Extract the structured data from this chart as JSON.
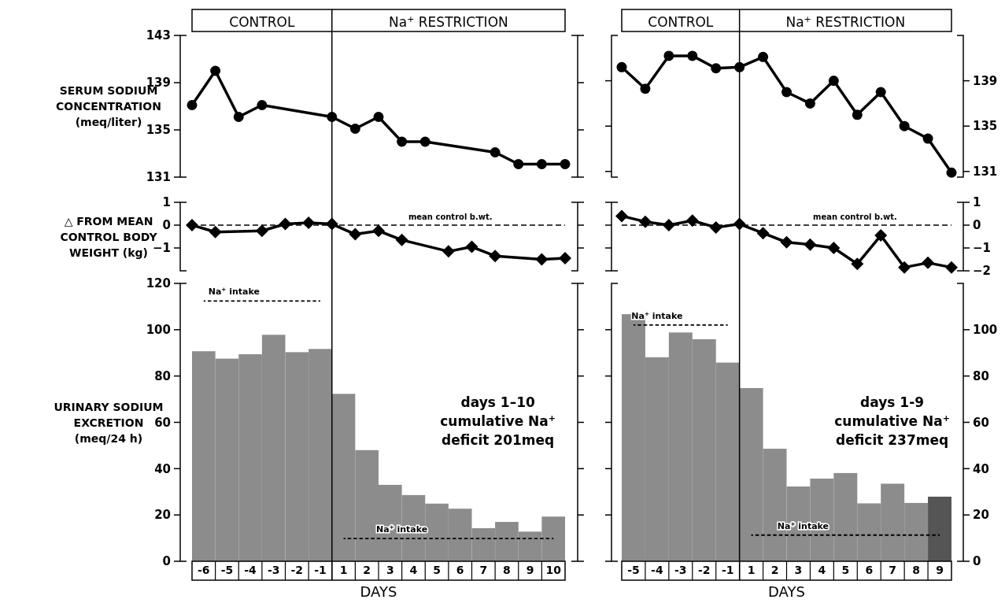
{
  "chart_data": [
    {
      "type": "line",
      "ylabel": "SERUM SODIUM CONCENTRATION (meq/liter)",
      "categories": [
        null,
        null,
        null,
        null,
        null,
        null,
        null,
        null,
        null,
        null,
        null,
        null,
        null,
        null,
        null,
        null,
        null
      ],
      "marker": "circle",
      "ylim": [
        131,
        143
      ],
      "yticks": [
        131,
        135,
        139,
        143
      ],
      "series": [
        {
          "color": "#000000",
          "values": [
            137.1,
            140,
            136.1,
            137.1,
            null,
            null,
            136.1,
            135.1,
            136.1,
            134,
            134,
            null,
            null,
            133.1,
            132.1,
            132.1,
            132.1
          ]
        }
      ],
      "annotations": [
        "CONTROL",
        "Na$^{+}$ RESTRICTION"
      ]
    },
    {
      "type": "line",
      "categories": [
        null,
        null,
        null,
        null,
        null,
        null,
        null,
        null,
        null,
        null,
        null,
        null,
        null,
        null,
        null
      ],
      "marker": "circle",
      "ylim": [
        130.5,
        143
      ],
      "yticks": [
        131,
        135,
        139
      ],
      "series": [
        {
          "color": "#000000",
          "values": [
            140.2,
            138.3,
            141.2,
            141.2,
            140.1,
            140.2,
            141.1,
            138,
            137,
            139,
            136,
            138,
            135,
            133.9,
            130.9
          ]
        }
      ],
      "annotations": [
        "CONTROL",
        "Na$^{+}$ RESTRICTION"
      ]
    },
    {
      "type": "line",
      "ylabel": "△ FROM MEAN CONTROL BODY WEIGHT (kg)",
      "categories": [
        null,
        null,
        null,
        null,
        null,
        null,
        null,
        null,
        null,
        null,
        null,
        null,
        null,
        null,
        null,
        null,
        null
      ],
      "marker": "diamond",
      "ylim": [
        -2,
        1
      ],
      "yticks": [
        1,
        0,
        -1
      ],
      "series": [
        {
          "color": "#000000",
          "values": [
            0,
            -0.3,
            null,
            -0.25,
            0.05,
            0.1,
            0.05,
            -0.4,
            -0.25,
            -0.65,
            null,
            -1.15,
            -0.95,
            -1.35,
            null,
            -1.5,
            -1.45
          ]
        }
      ],
      "ref_lines": [
        {
          "axis": "y",
          "value": 0,
          "label": "mean control b.wt.",
          "line_style": "dashed"
        }
      ]
    },
    {
      "type": "line",
      "categories": [
        null,
        null,
        null,
        null,
        null,
        null,
        null,
        null,
        null,
        null,
        null,
        null,
        null,
        null,
        null
      ],
      "marker": "diamond",
      "ylim": [
        -2,
        1
      ],
      "yticks": [
        1,
        0,
        -1,
        -2
      ],
      "series": [
        {
          "color": "#000000",
          "values": [
            0.4,
            0.15,
            0,
            0.2,
            -0.1,
            0.05,
            -0.35,
            -0.75,
            -0.85,
            -1,
            -1.7,
            -0.45,
            -1.85,
            -1.65,
            -1.85
          ]
        }
      ],
      "ref_lines": [
        {
          "axis": "y",
          "value": 0,
          "label": "mean control b.wt.",
          "line_style": "dashed"
        }
      ]
    },
    {
      "type": "bar",
      "ylabel": "URINARY SODIUM EXCRETION (meq/24 h)",
      "xlabel": "DAYS",
      "categories": [
        "-6",
        "-5",
        "-4",
        "-3",
        "-2",
        "-1",
        "1",
        "2",
        "3",
        "4",
        "5",
        "6",
        "7",
        "8",
        "9",
        "10"
      ],
      "ylim": [
        0,
        120
      ],
      "yticks": [
        0,
        20,
        40,
        60,
        80,
        100,
        120
      ],
      "series": [
        {
          "type": "bar",
          "colors": [
            "#8c8c8c",
            "#8c8c8c",
            "#8c8c8c",
            "#8c8c8c",
            "#8c8c8c",
            "#8c8c8c",
            "#8c8c8c",
            "#8c8c8c",
            "#8c8c8c",
            "#8c8c8c",
            "#8c8c8c",
            "#8c8c8c",
            "#8c8c8c",
            "#8c8c8c",
            "#8c8c8c",
            "#8c8c8c"
          ],
          "values": [
            90.7,
            87.5,
            89.4,
            97.8,
            90.3,
            91.7,
            72.3,
            48,
            33,
            28.6,
            24.9,
            22.7,
            14.3,
            17,
            12.8,
            19.3
          ]
        },
        {
          "type": "line",
          "name": "Na$^{+}$ intake",
          "color": "#000000",
          "line_style": "dashed",
          "values": [
            112.4,
            112.4,
            112.4,
            112.4,
            112.4,
            112.4,
            null,
            null,
            null,
            null,
            null,
            null,
            null,
            null,
            null,
            null
          ]
        },
        {
          "type": "line",
          "name": "Na$^{+}$ intake",
          "color": "#000000",
          "line_style": "dashed",
          "values": [
            null,
            null,
            null,
            null,
            null,
            null,
            9.8,
            9.8,
            9.8,
            9.8,
            9.8,
            9.8,
            9.8,
            9.8,
            9.8,
            9.8
          ]
        }
      ],
      "annotations": [
        "days 1–10",
        "cumulative Na$^{+}$",
        "deficit 201meq"
      ]
    },
    {
      "type": "bar",
      "xlabel": "DAYS",
      "categories": [
        "-5",
        "-4",
        "-3",
        "-2",
        "-1",
        "1",
        "2",
        "3",
        "4",
        "5",
        "6",
        "7",
        "8",
        "9"
      ],
      "ylim": [
        0,
        120
      ],
      "yticks": [
        0,
        20,
        40,
        60,
        80,
        100
      ],
      "series": [
        {
          "type": "bar",
          "colors": [
            "#8c8c8c",
            "#8c8c8c",
            "#8c8c8c",
            "#8c8c8c",
            "#8c8c8c",
            "#8c8c8c",
            "#8c8c8c",
            "#8c8c8c",
            "#8c8c8c",
            "#8c8c8c",
            "#8c8c8c",
            "#8c8c8c",
            "#8c8c8c",
            "#555555"
          ],
          "values": [
            106.7,
            88.1,
            98.8,
            95.9,
            85.8,
            74.8,
            48.6,
            32.3,
            35.7,
            38.1,
            25,
            33.5,
            25.2,
            27.9
          ]
        },
        {
          "type": "line",
          "name": "Na$^{+}$ intake",
          "color": "#000000",
          "line_style": "dashed",
          "values": [
            102,
            102,
            102,
            102,
            102,
            null,
            null,
            null,
            null,
            null,
            null,
            null,
            null,
            null
          ]
        },
        {
          "type": "line",
          "name": "Na$^{+}$ intake",
          "color": "#000000",
          "line_style": "dashed",
          "values": [
            null,
            null,
            null,
            null,
            null,
            11.3,
            11.3,
            11.3,
            11.3,
            11.3,
            11.3,
            11.3,
            11.3,
            11.3
          ]
        }
      ],
      "annotations": [
        "days 1-9",
        "cumulative Na$^{+}$",
        "deficit 237meq"
      ]
    }
  ]
}
